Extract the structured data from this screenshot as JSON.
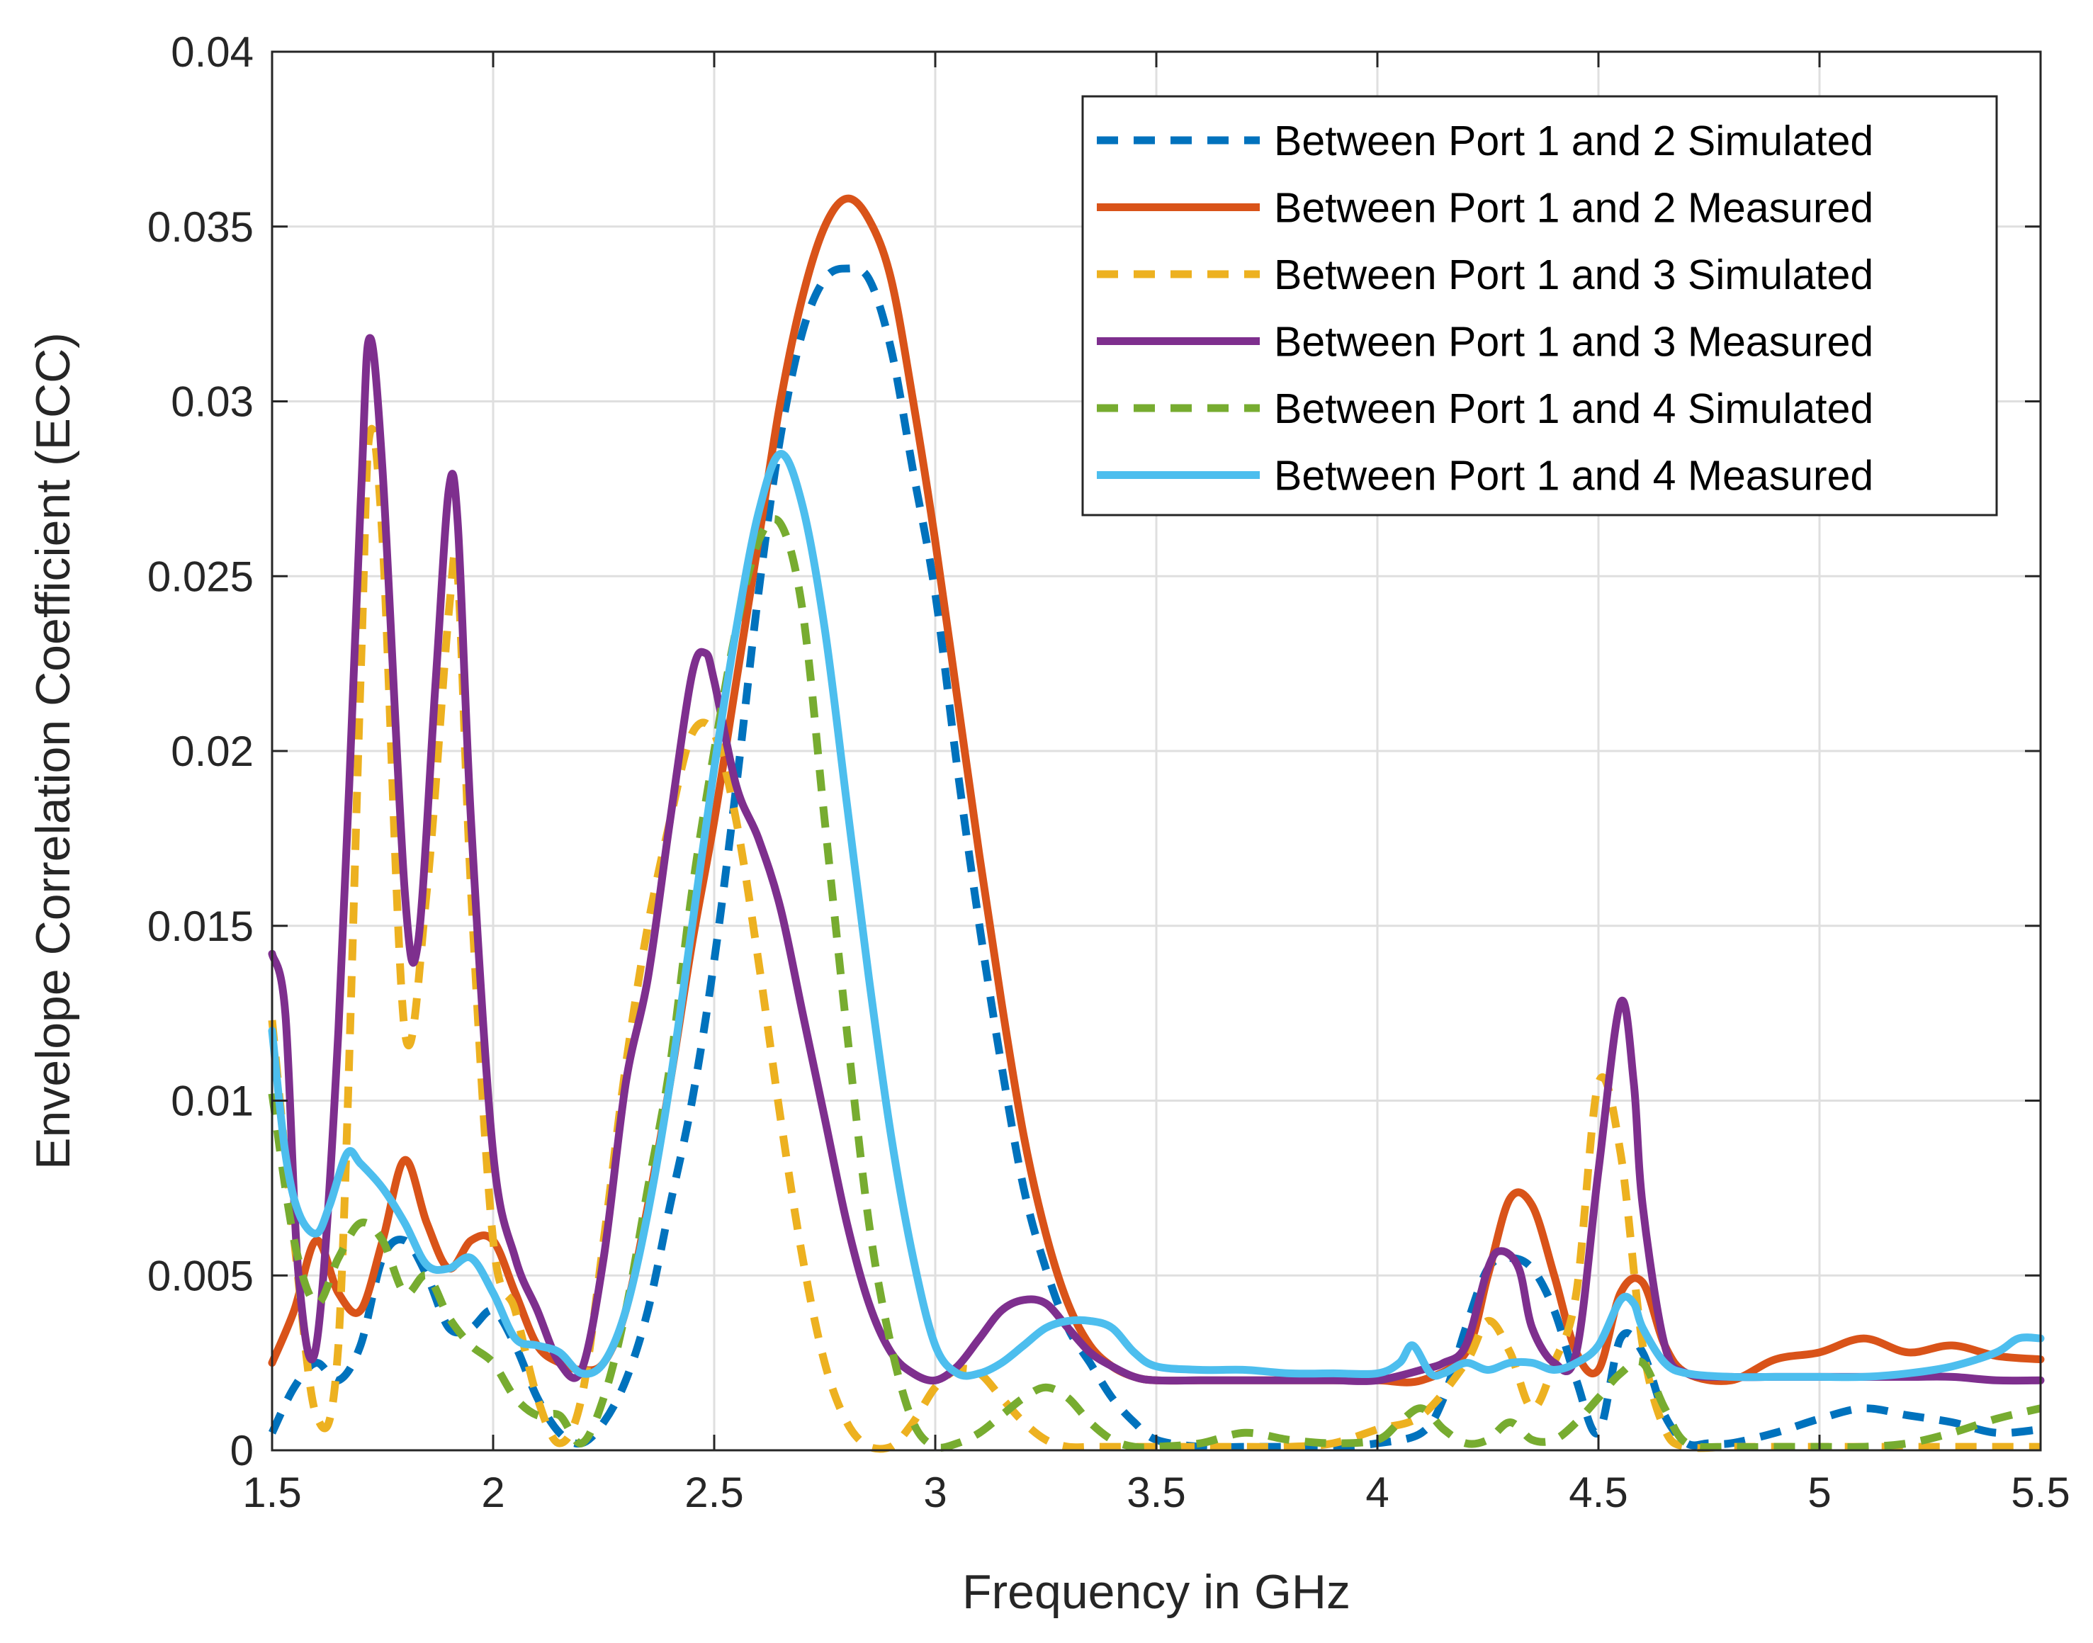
{
  "chart_data": {
    "type": "line",
    "title": "",
    "xlabel": "Frequency in GHz",
    "ylabel": "Envelope Correlation Coefficient (ECC)",
    "xlim": [
      1.5,
      5.5
    ],
    "ylim": [
      0,
      0.04
    ],
    "xticks": [
      1.5,
      2,
      2.5,
      3,
      3.5,
      4,
      4.5,
      5,
      5.5
    ],
    "xtick_labels": [
      "1.5",
      "2",
      "2.5",
      "3",
      "3.5",
      "4",
      "4.5",
      "5",
      "5.5"
    ],
    "yticks": [
      0,
      0.005,
      0.01,
      0.015,
      0.02,
      0.025,
      0.03,
      0.035,
      0.04
    ],
    "ytick_labels": [
      "0",
      "0.005",
      "0.01",
      "0.015",
      "0.02",
      "0.025",
      "0.03",
      "0.035",
      "0.04"
    ],
    "grid": true,
    "legend_position": "top-right",
    "series": [
      {
        "name": "Between Port 1 and 2 Simulated",
        "color": "#0072BD",
        "style": "dashed",
        "x": [
          1.5,
          1.55,
          1.6,
          1.65,
          1.7,
          1.75,
          1.8,
          1.85,
          1.9,
          1.95,
          2.0,
          2.05,
          2.1,
          2.15,
          2.2,
          2.25,
          2.3,
          2.35,
          2.4,
          2.45,
          2.5,
          2.55,
          2.6,
          2.65,
          2.7,
          2.75,
          2.8,
          2.85,
          2.9,
          2.95,
          3.0,
          3.05,
          3.1,
          3.15,
          3.2,
          3.25,
          3.3,
          3.35,
          3.4,
          3.45,
          3.5,
          3.6,
          3.7,
          3.8,
          3.9,
          4.0,
          4.1,
          4.15,
          4.2,
          4.25,
          4.3,
          4.35,
          4.4,
          4.45,
          4.5,
          4.55,
          4.6,
          4.65,
          4.7,
          4.75,
          4.8,
          4.9,
          5.0,
          5.1,
          5.2,
          5.3,
          5.4,
          5.5
        ],
        "y": [
          0.0005,
          0.0018,
          0.0025,
          0.002,
          0.003,
          0.0055,
          0.006,
          0.005,
          0.0035,
          0.0035,
          0.004,
          0.003,
          0.0015,
          0.0005,
          0.0002,
          0.0008,
          0.002,
          0.004,
          0.007,
          0.01,
          0.014,
          0.019,
          0.0245,
          0.029,
          0.032,
          0.0335,
          0.0338,
          0.0335,
          0.0315,
          0.028,
          0.0245,
          0.0195,
          0.015,
          0.011,
          0.0075,
          0.0052,
          0.0035,
          0.0025,
          0.0015,
          0.0008,
          0.0003,
          0.0001,
          0.0001,
          0.0001,
          0.0001,
          0.0002,
          0.0005,
          0.0015,
          0.0035,
          0.0052,
          0.0055,
          0.0052,
          0.004,
          0.002,
          0.0005,
          0.0032,
          0.0028,
          0.001,
          0.0002,
          0.0002,
          0.0002,
          0.0005,
          0.0009,
          0.0012,
          0.001,
          0.0008,
          0.0005,
          0.0006
        ]
      },
      {
        "name": "Between Port 1 and 2 Measured",
        "color": "#D95319",
        "style": "solid",
        "x": [
          1.5,
          1.55,
          1.6,
          1.65,
          1.7,
          1.75,
          1.8,
          1.85,
          1.9,
          1.95,
          2.0,
          2.05,
          2.1,
          2.15,
          2.2,
          2.25,
          2.3,
          2.35,
          2.4,
          2.45,
          2.5,
          2.55,
          2.6,
          2.65,
          2.7,
          2.75,
          2.8,
          2.85,
          2.9,
          2.95,
          3.0,
          3.05,
          3.1,
          3.15,
          3.2,
          3.25,
          3.3,
          3.35,
          3.4,
          3.45,
          3.5,
          3.6,
          3.7,
          3.8,
          3.9,
          4.0,
          4.1,
          4.2,
          4.25,
          4.3,
          4.35,
          4.4,
          4.45,
          4.5,
          4.55,
          4.6,
          4.65,
          4.7,
          4.8,
          4.9,
          5.0,
          5.1,
          5.2,
          5.3,
          5.4,
          5.5
        ],
        "y": [
          0.0025,
          0.004,
          0.006,
          0.0045,
          0.004,
          0.006,
          0.0083,
          0.0065,
          0.0052,
          0.006,
          0.006,
          0.0045,
          0.003,
          0.0025,
          0.0023,
          0.0025,
          0.004,
          0.007,
          0.0105,
          0.0145,
          0.018,
          0.022,
          0.026,
          0.03,
          0.033,
          0.035,
          0.0358,
          0.0352,
          0.0335,
          0.03,
          0.026,
          0.0215,
          0.017,
          0.0128,
          0.009,
          0.0062,
          0.0042,
          0.003,
          0.0024,
          0.0021,
          0.002,
          0.002,
          0.002,
          0.002,
          0.002,
          0.002,
          0.002,
          0.0028,
          0.005,
          0.0072,
          0.007,
          0.005,
          0.0028,
          0.0023,
          0.0045,
          0.0048,
          0.003,
          0.0022,
          0.002,
          0.0026,
          0.0028,
          0.0032,
          0.0028,
          0.003,
          0.0027,
          0.0026
        ]
      },
      {
        "name": "Between Port 1 and 3 Simulated",
        "color": "#EDB120",
        "style": "dashed",
        "x": [
          1.5,
          1.55,
          1.6,
          1.65,
          1.7,
          1.72,
          1.75,
          1.8,
          1.85,
          1.9,
          1.92,
          1.95,
          2.0,
          2.05,
          2.1,
          2.15,
          2.2,
          2.25,
          2.3,
          2.35,
          2.4,
          2.45,
          2.5,
          2.55,
          2.6,
          2.65,
          2.7,
          2.75,
          2.8,
          2.85,
          2.9,
          2.95,
          3.0,
          3.05,
          3.1,
          3.15,
          3.2,
          3.25,
          3.3,
          3.35,
          3.4,
          3.45,
          3.5,
          3.6,
          3.7,
          3.8,
          3.9,
          4.0,
          4.1,
          4.2,
          4.25,
          4.3,
          4.35,
          4.4,
          4.45,
          4.5,
          4.55,
          4.6,
          4.65,
          4.7,
          4.8,
          4.9,
          5.0,
          5.1,
          5.2,
          5.3,
          5.4,
          5.5
        ],
        "y": [
          0.0123,
          0.006,
          0.001,
          0.003,
          0.022,
          0.029,
          0.026,
          0.012,
          0.016,
          0.024,
          0.025,
          0.016,
          0.006,
          0.004,
          0.0015,
          0.0002,
          0.0015,
          0.006,
          0.011,
          0.015,
          0.018,
          0.0205,
          0.0205,
          0.018,
          0.014,
          0.0095,
          0.0055,
          0.0025,
          0.0008,
          0.0001,
          0.0001,
          0.0008,
          0.0018,
          0.0023,
          0.0022,
          0.0015,
          0.0008,
          0.0003,
          0.0001,
          0.0001,
          0.0001,
          0.0001,
          0.0001,
          0.0001,
          0.0001,
          0.0001,
          0.0002,
          0.0006,
          0.001,
          0.0025,
          0.0037,
          0.0028,
          0.0012,
          0.0025,
          0.0045,
          0.0105,
          0.0085,
          0.003,
          0.0006,
          0.0001,
          0.0001,
          0.0001,
          0.0001,
          0.0001,
          0.0001,
          0.0001,
          0.0001,
          0.0001
        ]
      },
      {
        "name": "Between Port 1 and 3 Measured",
        "color": "#7E2F8E",
        "style": "solid",
        "x": [
          1.5,
          1.53,
          1.56,
          1.6,
          1.65,
          1.7,
          1.72,
          1.75,
          1.8,
          1.83,
          1.87,
          1.9,
          1.92,
          1.95,
          2.0,
          2.05,
          2.1,
          2.15,
          2.2,
          2.25,
          2.3,
          2.35,
          2.4,
          2.45,
          2.48,
          2.5,
          2.55,
          2.6,
          2.65,
          2.7,
          2.75,
          2.8,
          2.85,
          2.9,
          2.95,
          3.0,
          3.05,
          3.1,
          3.15,
          3.2,
          3.25,
          3.3,
          3.35,
          3.4,
          3.45,
          3.5,
          3.6,
          3.7,
          3.8,
          3.9,
          4.0,
          4.1,
          4.15,
          4.2,
          4.25,
          4.28,
          4.32,
          4.35,
          4.4,
          4.45,
          4.5,
          4.55,
          4.58,
          4.6,
          4.65,
          4.7,
          4.8,
          4.9,
          5.0,
          5.1,
          5.2,
          5.3,
          5.4,
          5.5
        ],
        "y": [
          0.0142,
          0.0125,
          0.005,
          0.003,
          0.012,
          0.027,
          0.0318,
          0.028,
          0.016,
          0.0145,
          0.022,
          0.0275,
          0.0265,
          0.018,
          0.0085,
          0.0055,
          0.004,
          0.0025,
          0.0023,
          0.0055,
          0.0105,
          0.0135,
          0.018,
          0.0222,
          0.0228,
          0.022,
          0.019,
          0.0175,
          0.0155,
          0.0125,
          0.0095,
          0.0065,
          0.0042,
          0.0028,
          0.0022,
          0.002,
          0.0024,
          0.0032,
          0.004,
          0.0043,
          0.0042,
          0.0035,
          0.0028,
          0.0024,
          0.0021,
          0.002,
          0.002,
          0.002,
          0.002,
          0.002,
          0.002,
          0.0023,
          0.0025,
          0.003,
          0.0052,
          0.0057,
          0.0052,
          0.0035,
          0.0025,
          0.0028,
          0.008,
          0.0128,
          0.0105,
          0.007,
          0.003,
          0.0022,
          0.0021,
          0.0021,
          0.0021,
          0.0021,
          0.0021,
          0.0021,
          0.002,
          0.002
        ]
      },
      {
        "name": "Between Port 1 and 4 Simulated",
        "color": "#77AC30",
        "style": "dashed",
        "x": [
          1.5,
          1.55,
          1.6,
          1.65,
          1.7,
          1.75,
          1.8,
          1.85,
          1.9,
          1.95,
          2.0,
          2.05,
          2.1,
          2.15,
          2.2,
          2.25,
          2.3,
          2.35,
          2.4,
          2.45,
          2.5,
          2.55,
          2.6,
          2.65,
          2.7,
          2.75,
          2.8,
          2.85,
          2.9,
          2.95,
          3.0,
          3.05,
          3.1,
          3.15,
          3.2,
          3.25,
          3.3,
          3.35,
          3.4,
          3.45,
          3.5,
          3.6,
          3.7,
          3.8,
          3.9,
          4.0,
          4.05,
          4.1,
          4.15,
          4.2,
          4.25,
          4.3,
          4.35,
          4.4,
          4.45,
          4.5,
          4.55,
          4.6,
          4.65,
          4.7,
          4.8,
          4.9,
          5.0,
          5.1,
          5.2,
          5.3,
          5.4,
          5.5
        ],
        "y": [
          0.0102,
          0.006,
          0.0042,
          0.0055,
          0.0065,
          0.006,
          0.0045,
          0.005,
          0.0038,
          0.003,
          0.0025,
          0.0015,
          0.001,
          0.001,
          0.0002,
          0.0015,
          0.004,
          0.0075,
          0.011,
          0.016,
          0.02,
          0.0235,
          0.026,
          0.0265,
          0.024,
          0.018,
          0.012,
          0.0065,
          0.003,
          0.0008,
          0.0001,
          0.0002,
          0.0005,
          0.001,
          0.0015,
          0.0018,
          0.0015,
          0.0008,
          0.0003,
          0.0001,
          0.0001,
          0.0002,
          0.0005,
          0.0003,
          0.0002,
          0.0003,
          0.0008,
          0.0012,
          0.0006,
          0.0002,
          0.0003,
          0.0008,
          0.0003,
          0.0003,
          0.0008,
          0.0015,
          0.0022,
          0.0025,
          0.0012,
          0.0002,
          0.0001,
          0.0001,
          0.0001,
          0.0001,
          0.0002,
          0.0005,
          0.0009,
          0.0012
        ]
      },
      {
        "name": "Between Port 1 and 4 Measured",
        "color": "#4DBEEE",
        "style": "solid",
        "x": [
          1.5,
          1.53,
          1.56,
          1.6,
          1.63,
          1.67,
          1.7,
          1.75,
          1.8,
          1.85,
          1.9,
          1.95,
          2.0,
          2.05,
          2.1,
          2.15,
          2.2,
          2.25,
          2.3,
          2.35,
          2.4,
          2.45,
          2.5,
          2.55,
          2.6,
          2.65,
          2.7,
          2.75,
          2.8,
          2.85,
          2.9,
          2.95,
          3.0,
          3.05,
          3.1,
          3.15,
          3.2,
          3.25,
          3.3,
          3.35,
          3.4,
          3.45,
          3.5,
          3.6,
          3.7,
          3.8,
          3.9,
          4.0,
          4.05,
          4.08,
          4.12,
          4.15,
          4.2,
          4.25,
          4.3,
          4.35,
          4.4,
          4.45,
          4.5,
          4.55,
          4.58,
          4.6,
          4.65,
          4.7,
          4.8,
          4.9,
          5.0,
          5.1,
          5.2,
          5.3,
          5.4,
          5.45,
          5.5
        ],
        "y": [
          0.012,
          0.0085,
          0.0068,
          0.0062,
          0.007,
          0.0085,
          0.0082,
          0.0075,
          0.0065,
          0.0053,
          0.0052,
          0.0055,
          0.0045,
          0.0032,
          0.003,
          0.0028,
          0.0022,
          0.0025,
          0.004,
          0.0068,
          0.0105,
          0.015,
          0.0195,
          0.0235,
          0.0268,
          0.0285,
          0.027,
          0.0235,
          0.0185,
          0.0135,
          0.009,
          0.0055,
          0.003,
          0.0022,
          0.0022,
          0.0025,
          0.003,
          0.0035,
          0.0037,
          0.0037,
          0.0035,
          0.0028,
          0.0024,
          0.0023,
          0.0023,
          0.0022,
          0.0022,
          0.0022,
          0.0025,
          0.003,
          0.0022,
          0.0022,
          0.0025,
          0.0023,
          0.0025,
          0.0025,
          0.0023,
          0.0025,
          0.003,
          0.0043,
          0.0042,
          0.0035,
          0.0025,
          0.0022,
          0.0021,
          0.0021,
          0.0021,
          0.0021,
          0.0022,
          0.0024,
          0.0028,
          0.0032,
          0.0032
        ]
      }
    ]
  }
}
